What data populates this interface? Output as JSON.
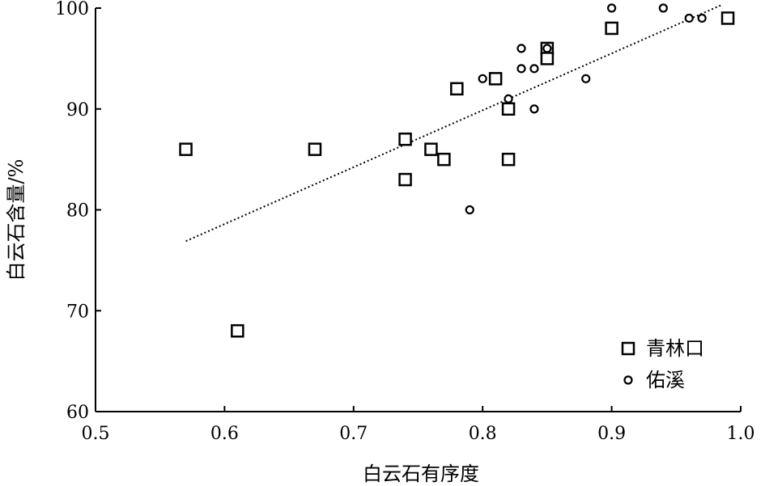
{
  "chart_data": {
    "type": "scatter",
    "xlabel": "白云石有序度",
    "ylabel": "白云石含量/%",
    "xlim": [
      0.5,
      1.0
    ],
    "ylim": [
      60,
      100
    ],
    "xticks": [
      "0.5",
      "0.6",
      "0.7",
      "0.8",
      "0.9",
      "1.0"
    ],
    "yticks": [
      "60",
      "70",
      "80",
      "90",
      "100"
    ],
    "grid": false,
    "legend_position": "bottom-right",
    "series": [
      {
        "name": "青林口",
        "marker": "square",
        "points": [
          [
            0.57,
            86
          ],
          [
            0.61,
            68
          ],
          [
            0.67,
            86
          ],
          [
            0.74,
            87
          ],
          [
            0.74,
            83
          ],
          [
            0.76,
            86
          ],
          [
            0.77,
            85
          ],
          [
            0.78,
            92
          ],
          [
            0.81,
            93
          ],
          [
            0.82,
            90
          ],
          [
            0.82,
            85
          ],
          [
            0.85,
            96
          ],
          [
            0.85,
            95
          ],
          [
            0.9,
            98
          ],
          [
            0.99,
            99
          ]
        ]
      },
      {
        "name": "佑溪",
        "marker": "circle",
        "points": [
          [
            0.79,
            80
          ],
          [
            0.8,
            93
          ],
          [
            0.82,
            91
          ],
          [
            0.83,
            96
          ],
          [
            0.83,
            94
          ],
          [
            0.84,
            94
          ],
          [
            0.84,
            90
          ],
          [
            0.85,
            96
          ],
          [
            0.88,
            93
          ],
          [
            0.9,
            100
          ],
          [
            0.94,
            100
          ],
          [
            0.96,
            99
          ],
          [
            0.97,
            99
          ]
        ]
      }
    ],
    "trendline": {
      "style": "dotted",
      "from": [
        0.57,
        76.9
      ],
      "to": [
        0.985,
        100.3
      ]
    }
  }
}
